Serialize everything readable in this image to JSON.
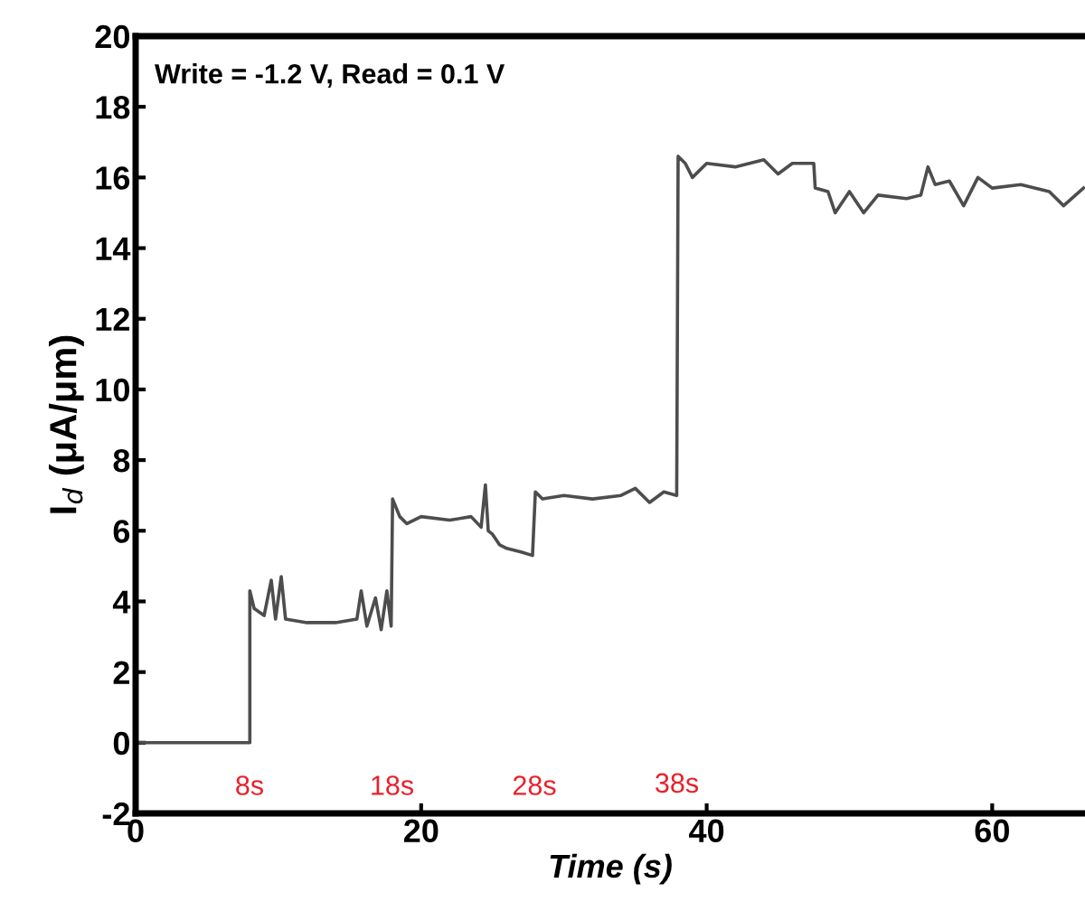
{
  "chart_data": {
    "type": "line",
    "xlabel": "Time (s)",
    "ylabel": "I$_{d}$ (μA/μm)",
    "annotations": [
      "Write = -1.2 V, Read = 0.1 V",
      "8s",
      "18s",
      "28s",
      "38s"
    ],
    "series": [
      {
        "color": "#4d4d4d",
        "x": [
          0,
          8,
          8,
          8.3,
          9,
          9.5,
          9.8,
          10.2,
          10.5,
          12,
          14,
          15.5,
          15.8,
          16.2,
          16.8,
          17.2,
          17.6,
          17.9,
          18,
          18.5,
          19,
          20,
          22,
          23.5,
          24.2,
          24.5,
          24.7,
          25,
          25.5,
          26,
          27,
          27.8,
          28,
          28.5,
          30,
          32,
          34,
          35,
          36,
          37,
          37.9,
          38,
          38.5,
          39,
          40,
          42,
          44,
          45,
          46,
          47.5,
          47.6,
          48.5,
          49,
          50,
          51,
          52,
          54,
          55,
          55.5,
          56,
          57,
          58,
          59,
          60,
          62,
          64,
          65,
          66.4
        ],
        "values": [
          0,
          0,
          4.3,
          3.8,
          3.6,
          4.6,
          3.5,
          4.7,
          3.5,
          3.4,
          3.4,
          3.5,
          4.3,
          3.3,
          4.1,
          3.2,
          4.3,
          3.3,
          6.9,
          6.4,
          6.2,
          6.4,
          6.3,
          6.4,
          6.1,
          7.3,
          6.0,
          5.9,
          5.6,
          5.5,
          5.4,
          5.3,
          7.1,
          6.9,
          7.0,
          6.9,
          7.0,
          7.2,
          6.8,
          7.1,
          7.0,
          16.6,
          16.4,
          16.0,
          16.4,
          16.3,
          16.5,
          16.1,
          16.4,
          16.4,
          15.7,
          15.6,
          15.0,
          15.6,
          15.0,
          15.5,
          15.4,
          15.5,
          16.3,
          15.8,
          15.9,
          15.2,
          16.0,
          15.7,
          15.8,
          15.6,
          15.2,
          15.7
        ]
      }
    ],
    "xlim": [
      0,
      66.5
    ],
    "ylim": [
      -2,
      20
    ],
    "xticks": [
      0,
      20,
      40,
      60
    ],
    "yticks": [
      -2,
      0,
      2,
      4,
      6,
      8,
      10,
      12,
      14,
      16,
      18,
      20
    ],
    "grid": false,
    "legend": false,
    "line_style": "solid",
    "marker": "none"
  }
}
